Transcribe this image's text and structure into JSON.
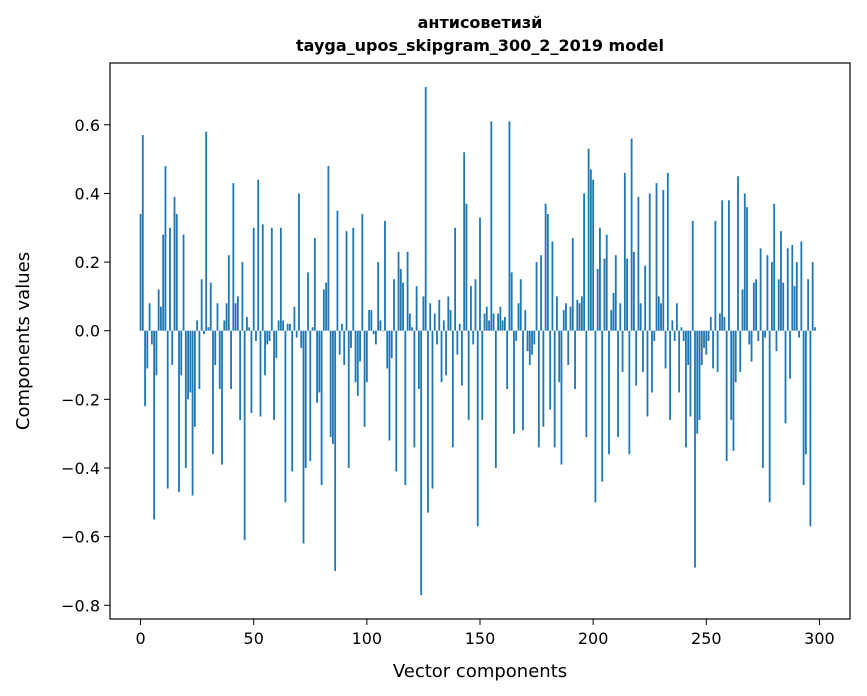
{
  "chart_data": {
    "type": "bar",
    "title": "антисоветизй",
    "subtitle": "tayga_upos_skipgram_300_2_2019 model",
    "xlabel": "Vector components",
    "ylabel": "Components values",
    "xlim": [
      -13.5,
      313.5
    ],
    "ylim": [
      -0.84,
      0.78
    ],
    "xticks": [
      0,
      50,
      100,
      150,
      200,
      250,
      300
    ],
    "xtick_labels": [
      "0",
      "50",
      "100",
      "150",
      "200",
      "250",
      "300"
    ],
    "yticks": [
      -0.8,
      -0.6,
      -0.4,
      -0.2,
      0.0,
      0.2,
      0.4,
      0.6
    ],
    "ytick_labels": [
      "−0.8",
      "−0.6",
      "−0.4",
      "−0.2",
      "0.0",
      "0.2",
      "0.4",
      "0.6"
    ],
    "grid": false,
    "bar_color": "#1f77b4",
    "values": [
      0.34,
      0.57,
      -0.22,
      -0.11,
      0.08,
      -0.04,
      -0.55,
      -0.13,
      0.12,
      0.07,
      0.28,
      0.48,
      -0.46,
      0.3,
      -0.1,
      0.39,
      0.34,
      -0.47,
      -0.13,
      0.28,
      -0.4,
      -0.2,
      -0.18,
      -0.48,
      -0.28,
      0.03,
      -0.17,
      0.15,
      -0.01,
      0.58,
      0.01,
      0.14,
      -0.36,
      -0.1,
      0.08,
      -0.17,
      -0.39,
      0.03,
      0.08,
      0.22,
      -0.17,
      0.43,
      0.08,
      0.1,
      -0.26,
      0.2,
      -0.61,
      0.04,
      0.01,
      -0.24,
      0.3,
      -0.03,
      0.44,
      -0.25,
      0.31,
      -0.13,
      -0.04,
      -0.03,
      0.3,
      -0.26,
      -0.08,
      0.03,
      0.3,
      0.03,
      -0.5,
      0.02,
      0.02,
      -0.41,
      0.07,
      -0.02,
      0.4,
      -0.05,
      -0.62,
      -0.4,
      0.17,
      -0.38,
      0.01,
      0.27,
      -0.21,
      -0.18,
      -0.45,
      0.12,
      0.14,
      0.48,
      -0.31,
      -0.33,
      -0.7,
      0.35,
      -0.07,
      0.02,
      -0.1,
      0.29,
      -0.4,
      -0.05,
      0.3,
      -0.15,
      -0.19,
      -0.09,
      0.34,
      -0.28,
      -0.15,
      0.06,
      0.06,
      -0.01,
      -0.04,
      0.2,
      0.03,
      0.0,
      0.32,
      -0.11,
      -0.32,
      -0.08,
      0.15,
      -0.41,
      0.23,
      0.18,
      0.14,
      -0.45,
      0.23,
      0.05,
      0.01,
      -0.34,
      0.13,
      -0.17,
      -0.77,
      0.1,
      0.71,
      -0.53,
      0.08,
      -0.46,
      0.05,
      -0.04,
      0.09,
      -0.15,
      0.03,
      -0.13,
      0.1,
      0.06,
      -0.34,
      0.3,
      -0.07,
      0.02,
      -0.16,
      0.52,
      0.37,
      -0.26,
      0.13,
      -0.04,
      0.15,
      -0.57,
      0.33,
      -0.26,
      0.05,
      0.07,
      0.03,
      0.61,
      0.05,
      -0.4,
      0.05,
      0.07,
      0.03,
      0.04,
      -0.17,
      0.61,
      0.17,
      -0.3,
      -0.03,
      0.08,
      0.15,
      -0.29,
      0.06,
      -0.06,
      -0.1,
      -0.07,
      -0.04,
      0.2,
      -0.34,
      0.22,
      -0.28,
      0.37,
      0.34,
      -0.23,
      0.26,
      -0.34,
      0.1,
      -0.15,
      -0.39,
      0.06,
      0.08,
      -0.1,
      0.07,
      0.27,
      -0.17,
      0.09,
      0.08,
      0.1,
      0.4,
      -0.31,
      0.53,
      0.47,
      0.44,
      -0.5,
      0.18,
      0.3,
      -0.44,
      0.21,
      0.28,
      -0.36,
      0.06,
      0.11,
      0.22,
      -0.31,
      0.08,
      -0.12,
      0.46,
      0.21,
      -0.36,
      0.56,
      0.23,
      -0.16,
      0.39,
      0.08,
      -0.12,
      0.19,
      -0.25,
      0.4,
      -0.18,
      -0.03,
      0.43,
      0.1,
      0.08,
      0.41,
      -0.11,
      0.46,
      -0.26,
      0.03,
      -0.03,
      0.08,
      -0.18,
      0.01,
      -0.03,
      -0.34,
      -0.1,
      -0.25,
      0.32,
      -0.69,
      -0.3,
      -0.26,
      -0.1,
      -0.05,
      -0.07,
      -0.03,
      0.04,
      -0.11,
      0.32,
      -0.12,
      0.05,
      0.38,
      0.04,
      -0.38,
      0.38,
      -0.26,
      -0.35,
      -0.15,
      0.45,
      -0.12,
      0.12,
      0.4,
      0.36,
      -0.04,
      -0.09,
      0.14,
      0.15,
      -0.03,
      0.24,
      -0.4,
      -0.02,
      0.22,
      -0.5,
      0.2,
      0.37,
      -0.06,
      0.15,
      0.29,
      0.14,
      -0.27,
      0.24,
      -0.14,
      0.25,
      0.13,
      0.2,
      -0.02,
      0.26,
      -0.45,
      -0.36,
      0.15,
      -0.57,
      0.2,
      0.01
    ]
  }
}
